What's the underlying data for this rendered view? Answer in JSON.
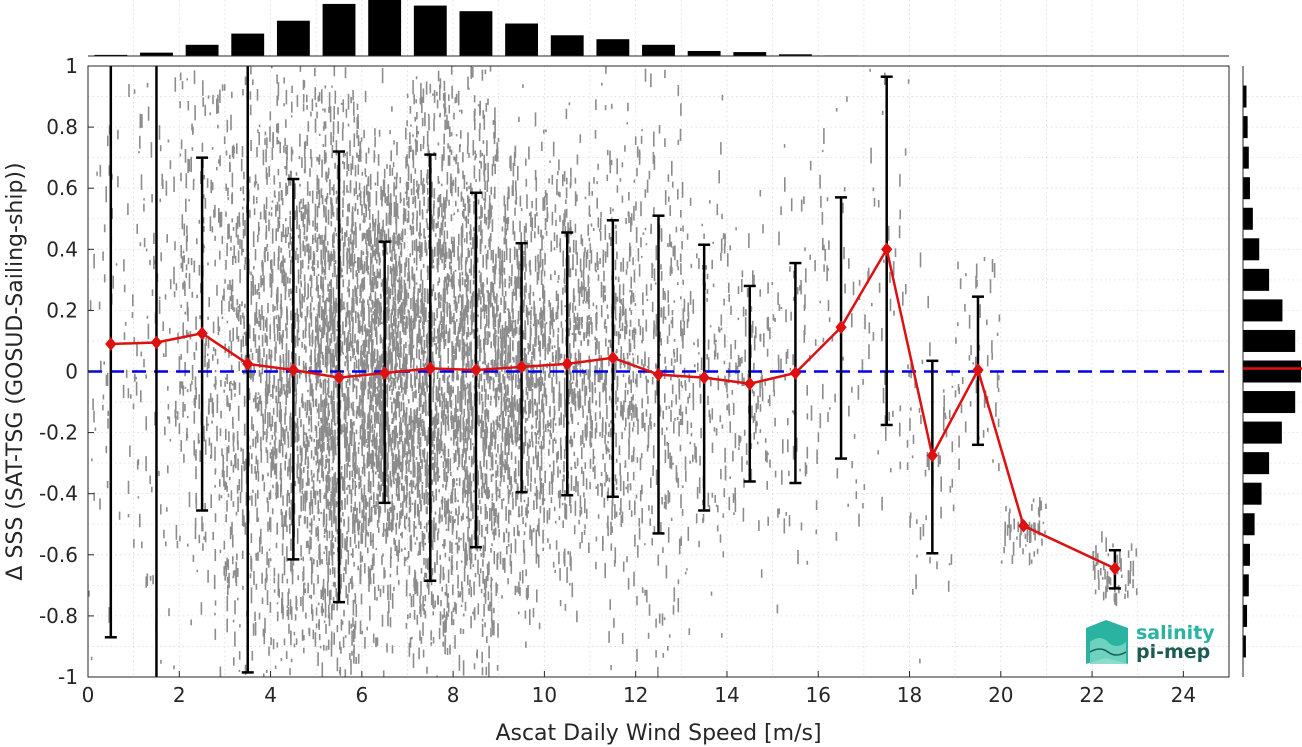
{
  "chart_data": {
    "type": "scatter",
    "xlabel": "Ascat Daily Wind Speed [m/s]",
    "ylabel": "Δ SSS (SAT-TSG (GOSUD-Sailing-ship))",
    "xlim": [
      0,
      25
    ],
    "ylim": [
      -1,
      1
    ],
    "xticks": [
      "0",
      "2",
      "4",
      "6",
      "8",
      "10",
      "12",
      "14",
      "16",
      "18",
      "20",
      "22",
      "24"
    ],
    "yticks": [
      "-1",
      "-0.8",
      "-0.6",
      "-0.4",
      "-0.2",
      "0",
      "0.2",
      "0.4",
      "0.6",
      "0.8",
      "1"
    ],
    "grid": true,
    "reference_line": {
      "y": 0,
      "color": "#0000ee",
      "style": "dashed"
    },
    "scatter_color": "#808080",
    "series": [
      {
        "type": "line-errorbar",
        "color": "#dd1111",
        "x": [
          0.5,
          1.5,
          2.5,
          3.5,
          4.5,
          5.5,
          6.5,
          7.5,
          8.5,
          9.5,
          10.5,
          11.5,
          12.5,
          13.5,
          14.5,
          15.5,
          16.5,
          17.5,
          18.5,
          19.5,
          20.5,
          22.5
        ],
        "y": [
          0.09,
          0.095,
          0.125,
          0.025,
          0.005,
          -0.02,
          -0.005,
          0.01,
          0.005,
          0.015,
          0.025,
          0.045,
          -0.01,
          -0.02,
          -0.04,
          -0.005,
          0.145,
          0.4,
          -0.275,
          0.005,
          -0.505,
          -0.645
        ],
        "upper": [
          1.0,
          1.0,
          0.7,
          1.0,
          0.63,
          0.72,
          0.425,
          0.71,
          0.585,
          0.42,
          0.455,
          0.495,
          0.51,
          0.415,
          0.28,
          0.355,
          0.57,
          0.965,
          0.035,
          0.245,
          null,
          -0.585
        ],
        "lower": [
          -0.87,
          -1.0,
          -0.455,
          -0.985,
          -0.615,
          -0.755,
          -0.43,
          -0.685,
          -0.575,
          -0.395,
          -0.405,
          -0.41,
          -0.53,
          -0.455,
          -0.36,
          -0.365,
          -0.285,
          -0.175,
          -0.595,
          -0.24,
          null,
          -0.71
        ]
      }
    ],
    "top_histogram": {
      "color": "#000000",
      "bins_x": [
        0.5,
        1.5,
        2.5,
        3.5,
        4.5,
        5.5,
        6.5,
        7.5,
        8.5,
        9.5,
        10.5,
        11.5,
        12.5,
        13.5,
        14.5,
        15.5,
        16.5
      ],
      "counts": [
        0.02,
        0.06,
        0.2,
        0.4,
        0.63,
        0.93,
        1.0,
        0.9,
        0.8,
        0.58,
        0.37,
        0.3,
        0.2,
        0.09,
        0.07,
        0.03,
        0.01
      ]
    },
    "right_histogram": {
      "color": "#000000",
      "median_color": "#dd1111",
      "median_y": 0.01,
      "bins_y": [
        -0.9,
        -0.8,
        -0.7,
        -0.6,
        -0.5,
        -0.4,
        -0.3,
        -0.2,
        -0.1,
        0.0,
        0.1,
        0.2,
        0.3,
        0.4,
        0.5,
        0.6,
        0.7,
        0.8,
        0.9
      ],
      "counts": [
        0.05,
        0.07,
        0.1,
        0.12,
        0.2,
        0.32,
        0.45,
        0.67,
        0.9,
        1.0,
        0.9,
        0.68,
        0.45,
        0.28,
        0.17,
        0.12,
        0.1,
        0.08,
        0.06
      ]
    }
  },
  "logo": {
    "line1": "salinity",
    "line2": "pi-mep",
    "color_text1": "#2ab3a0",
    "color_text2": "#1d5c55"
  }
}
